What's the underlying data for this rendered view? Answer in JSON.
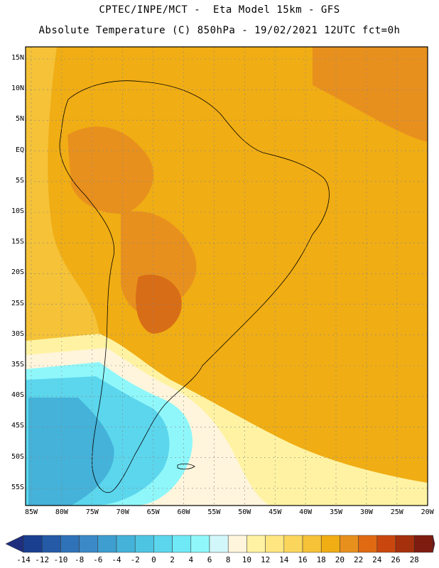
{
  "header": {
    "title_line1": "CPTEC/INPE/MCT -  Eta Model 15km - GFS",
    "title_line2": "Absolute Temperature (C) 850hPa - 19/02/2021 12UTC fct=0h"
  },
  "latitude_labels": [
    "15N",
    "10N",
    "5N",
    "EQ",
    "5S",
    "10S",
    "15S",
    "20S",
    "25S",
    "30S",
    "35S",
    "40S",
    "45S",
    "50S",
    "55S"
  ],
  "longitude_labels": [
    "85W",
    "80W",
    "75W",
    "70W",
    "65W",
    "60W",
    "55W",
    "50W",
    "45W",
    "40W",
    "35W",
    "30W",
    "25W",
    "20W"
  ],
  "colorbar": {
    "labels": [
      "-14",
      "-12",
      "-10",
      "-8",
      "-6",
      "-4",
      "-2",
      "0",
      "2",
      "4",
      "6",
      "8",
      "10",
      "12",
      "14",
      "16",
      "18",
      "20",
      "22",
      "24",
      "26",
      "28"
    ],
    "colors": [
      "#1a3f8f",
      "#245aa6",
      "#2f72b8",
      "#3b89c7",
      "#3e9ecf",
      "#44b2d9",
      "#4ec4e3",
      "#5bd6ed",
      "#6fe9f6",
      "#8ff7fa",
      "#d2f7fb",
      "#fff5dc",
      "#fff3a3",
      "#ffe680",
      "#fbd65c",
      "#f5c238",
      "#f0ad14",
      "#e8901d",
      "#e06a12",
      "#c9470e",
      "#a5300c",
      "#7e1c10"
    ],
    "under_color": "#1f2f7e",
    "over_color": "#6f1020"
  },
  "field": {
    "units": "C",
    "level": "850hPa",
    "colors": {
      "ocean_warm": "#f0ad14",
      "land_hot": "#e08a20",
      "land_very_hot": "#d86d17",
      "cool_band": "#fff3a3",
      "cold_south": "#5bd6ed",
      "very_cold": "#44b2d9"
    }
  }
}
